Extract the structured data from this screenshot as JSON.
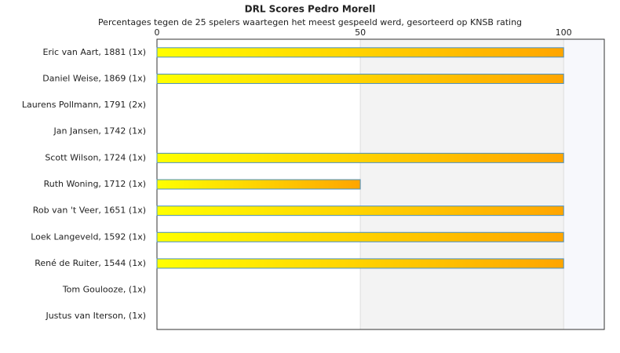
{
  "chart_data": {
    "type": "bar",
    "orientation": "horizontal",
    "title": "DRL Scores Pedro Morell",
    "subtitle": "Percentages tegen de 25 spelers waartegen het meest gespeeld werd, gesorteerd op KNSB rating",
    "categories": [
      "Eric van Aart, 1881 (1x)",
      "Daniel Weise, 1869 (1x)",
      "Laurens Pollmann, 1791 (2x)",
      "Jan Jansen, 1742 (1x)",
      "Scott Wilson, 1724 (1x)",
      "Ruth Woning, 1712 (1x)",
      "Rob van 't Veer, 1651 (1x)",
      "Loek Langeveld, 1592 (1x)",
      "René de Ruiter, 1544 (1x)",
      "Tom Goulooze,  (1x)",
      "Justus van Iterson,  (1x)"
    ],
    "values": [
      100,
      100,
      0,
      0,
      100,
      50,
      100,
      100,
      100,
      0,
      0
    ],
    "color": [
      "#ffff00",
      "#ffa500"
    ],
    "xlim": [
      0,
      110
    ],
    "xticks": [
      0,
      50,
      100
    ],
    "grid": true
  }
}
